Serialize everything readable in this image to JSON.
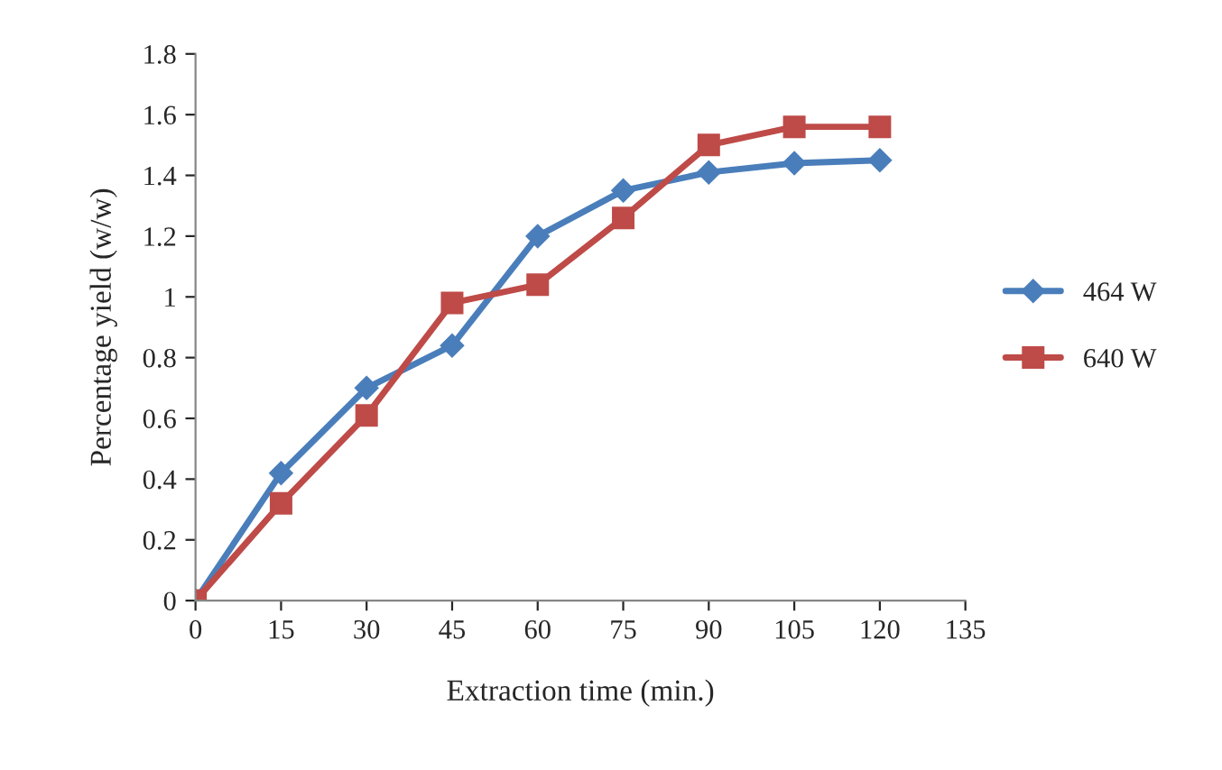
{
  "chart_data": {
    "type": "line",
    "xlabel": "Extraction time (min.)",
    "ylabel": "Percentage yield (w/w)",
    "x": [
      0,
      15,
      30,
      45,
      60,
      75,
      90,
      105,
      120
    ],
    "series": [
      {
        "name": "464 W",
        "color": "#4a7ebb",
        "marker": "diamond",
        "values": [
          0,
          0.42,
          0.7,
          0.84,
          1.2,
          1.35,
          1.41,
          1.44,
          1.45
        ]
      },
      {
        "name": "640 W",
        "color": "#be4b48",
        "marker": "square",
        "values": [
          0,
          0.32,
          0.61,
          0.98,
          1.04,
          1.26,
          1.5,
          1.56,
          1.56
        ]
      }
    ],
    "xlim": [
      0,
      135
    ],
    "xticks": [
      0,
      15,
      30,
      45,
      60,
      75,
      90,
      105,
      120,
      135
    ],
    "ylim": [
      0,
      1.8
    ],
    "yticks": [
      0,
      0.2,
      0.4,
      0.6,
      0.8,
      1,
      1.2,
      1.4,
      1.6,
      1.8
    ],
    "grid": false,
    "legend": "right",
    "line_style": "solid"
  }
}
